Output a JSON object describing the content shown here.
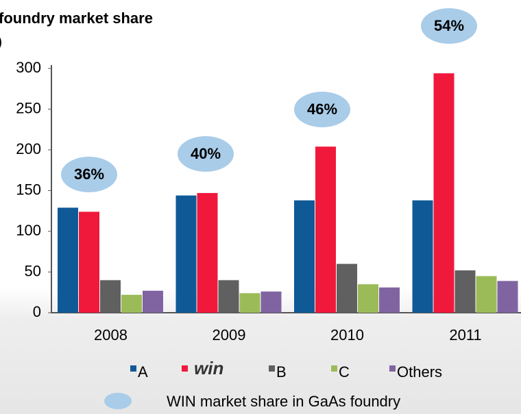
{
  "chart_data": {
    "type": "bar",
    "title": "foundry market share",
    "y_label": ")",
    "categories": [
      "2008",
      "2009",
      "2010",
      "2011"
    ],
    "series": [
      {
        "name": "A",
        "color": "#0f5a96",
        "values": [
          129,
          144,
          138,
          138
        ]
      },
      {
        "name": "win",
        "color": "#f0193c",
        "values": [
          124,
          147,
          204,
          294
        ]
      },
      {
        "name": "B",
        "color": "#606060",
        "values": [
          40,
          40,
          60,
          52
        ]
      },
      {
        "name": "C",
        "color": "#9bbb59",
        "values": [
          22,
          24,
          35,
          45
        ]
      },
      {
        "name": "Others",
        "color": "#8064a2",
        "values": [
          27,
          26,
          31,
          39
        ]
      }
    ],
    "share": {
      "name": "WIN market share in GaAs foundry",
      "color": "#a9cce8",
      "values": [
        36,
        40,
        46,
        54
      ],
      "value_labels": [
        "36%",
        "40%",
        "46%",
        "54%"
      ]
    },
    "ylim": [
      0,
      300
    ],
    "yticks": [
      0,
      50,
      100,
      150,
      200,
      250,
      300
    ],
    "grid": false
  }
}
